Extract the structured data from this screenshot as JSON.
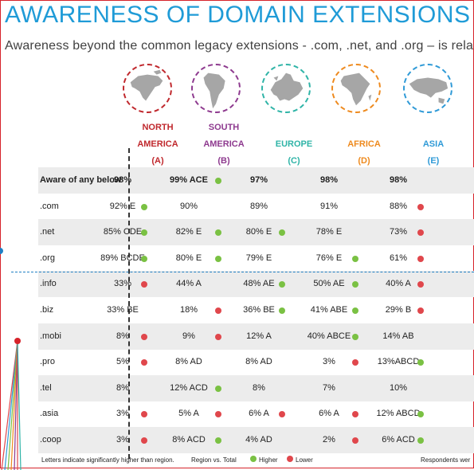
{
  "title": "AWARENESS OF DOMAIN EXTENSIONS",
  "subtitle": "Awareness beyond the common legacy extensions - .com, .net, and .org – is rela",
  "colors": {
    "na": "#c0282d",
    "sa": "#8e3a8f",
    "eu": "#2fb4a7",
    "af": "#ee8a1e",
    "as": "#2f9ad7",
    "higher": "#7ac143",
    "lower": "#e0474c"
  },
  "regions": [
    {
      "line1": "NORTH",
      "line2": "AMERICA",
      "code": "(A)",
      "icon": "north-america-globe-icon"
    },
    {
      "line1": "SOUTH",
      "line2": "AMERICA",
      "code": "(B)",
      "icon": "south-america-globe-icon"
    },
    {
      "line1": "",
      "line2": "EUROPE",
      "code": "(C)",
      "icon": "europe-globe-icon"
    },
    {
      "line1": "",
      "line2": "AFRICA",
      "code": "(D)",
      "icon": "africa-globe-icon"
    },
    {
      "line1": "",
      "line2": "ASIA",
      "code": "(E)",
      "icon": "asia-globe-icon"
    }
  ],
  "rows": [
    {
      "label": "Aware of any below",
      "cells": [
        "98%",
        "99% ACE",
        "97%",
        "98%",
        "98%"
      ],
      "dots": [
        "",
        "g",
        "",
        "",
        ""
      ]
    },
    {
      "label": ".com",
      "cells": [
        "92% E",
        "90%",
        "89%",
        "91%",
        "88%"
      ],
      "dots": [
        "g",
        "",
        "",
        "",
        "r"
      ]
    },
    {
      "label": ".net",
      "cells": [
        "85% CDE",
        "82% E",
        "80% E",
        "78% E",
        "73%"
      ],
      "dots": [
        "g",
        "g",
        "g",
        "",
        "r"
      ]
    },
    {
      "label": ".org",
      "cells": [
        "89% BCDE",
        "80% E",
        "79% E",
        "76% E",
        "61%"
      ],
      "dots": [
        "g",
        "g",
        "",
        "g",
        "r"
      ]
    },
    {
      "label": ".info",
      "cells": [
        "33%",
        "44% A",
        "48% AE",
        "50% AE",
        "40% A"
      ],
      "dots": [
        "r",
        "",
        "g",
        "g",
        "r"
      ]
    },
    {
      "label": ".biz",
      "cells": [
        "33% BE",
        "18%",
        "36% BE",
        "41% ABE",
        "29% B"
      ],
      "dots": [
        "",
        "r",
        "g",
        "g",
        "r"
      ]
    },
    {
      "label": ".mobi",
      "cells": [
        "8%",
        "9%",
        "12% A",
        "40% ABCE",
        "14% AB"
      ],
      "dots": [
        "r",
        "r",
        "",
        "g",
        ""
      ]
    },
    {
      "label": ".pro",
      "cells": [
        "5%",
        "8% AD",
        "8% AD",
        "3%",
        "13%ABCD"
      ],
      "dots": [
        "r",
        "",
        "",
        "r",
        "g"
      ]
    },
    {
      "label": ".tel",
      "cells": [
        "8%",
        "12% ACD",
        "8%",
        "7%",
        "10%"
      ],
      "dots": [
        "",
        "g",
        "",
        "",
        ""
      ]
    },
    {
      "label": ".asia",
      "cells": [
        "3%",
        "5% A",
        "6% A",
        "6% A",
        "12% ABCD"
      ],
      "dots": [
        "r",
        "r",
        "r",
        "r",
        "g"
      ]
    },
    {
      "label": ".coop",
      "cells": [
        "3%",
        "8% ACD",
        "4% AD",
        "2%",
        "6% ACD"
      ],
      "dots": [
        "r",
        "g",
        "",
        "r",
        "g"
      ]
    }
  ],
  "footer": {
    "note": "Letters indicate significantly higher than region.",
    "legend_title": "Region vs. Total",
    "higher": "Higher",
    "lower": "Lower",
    "respondents": "Respondents wer"
  }
}
